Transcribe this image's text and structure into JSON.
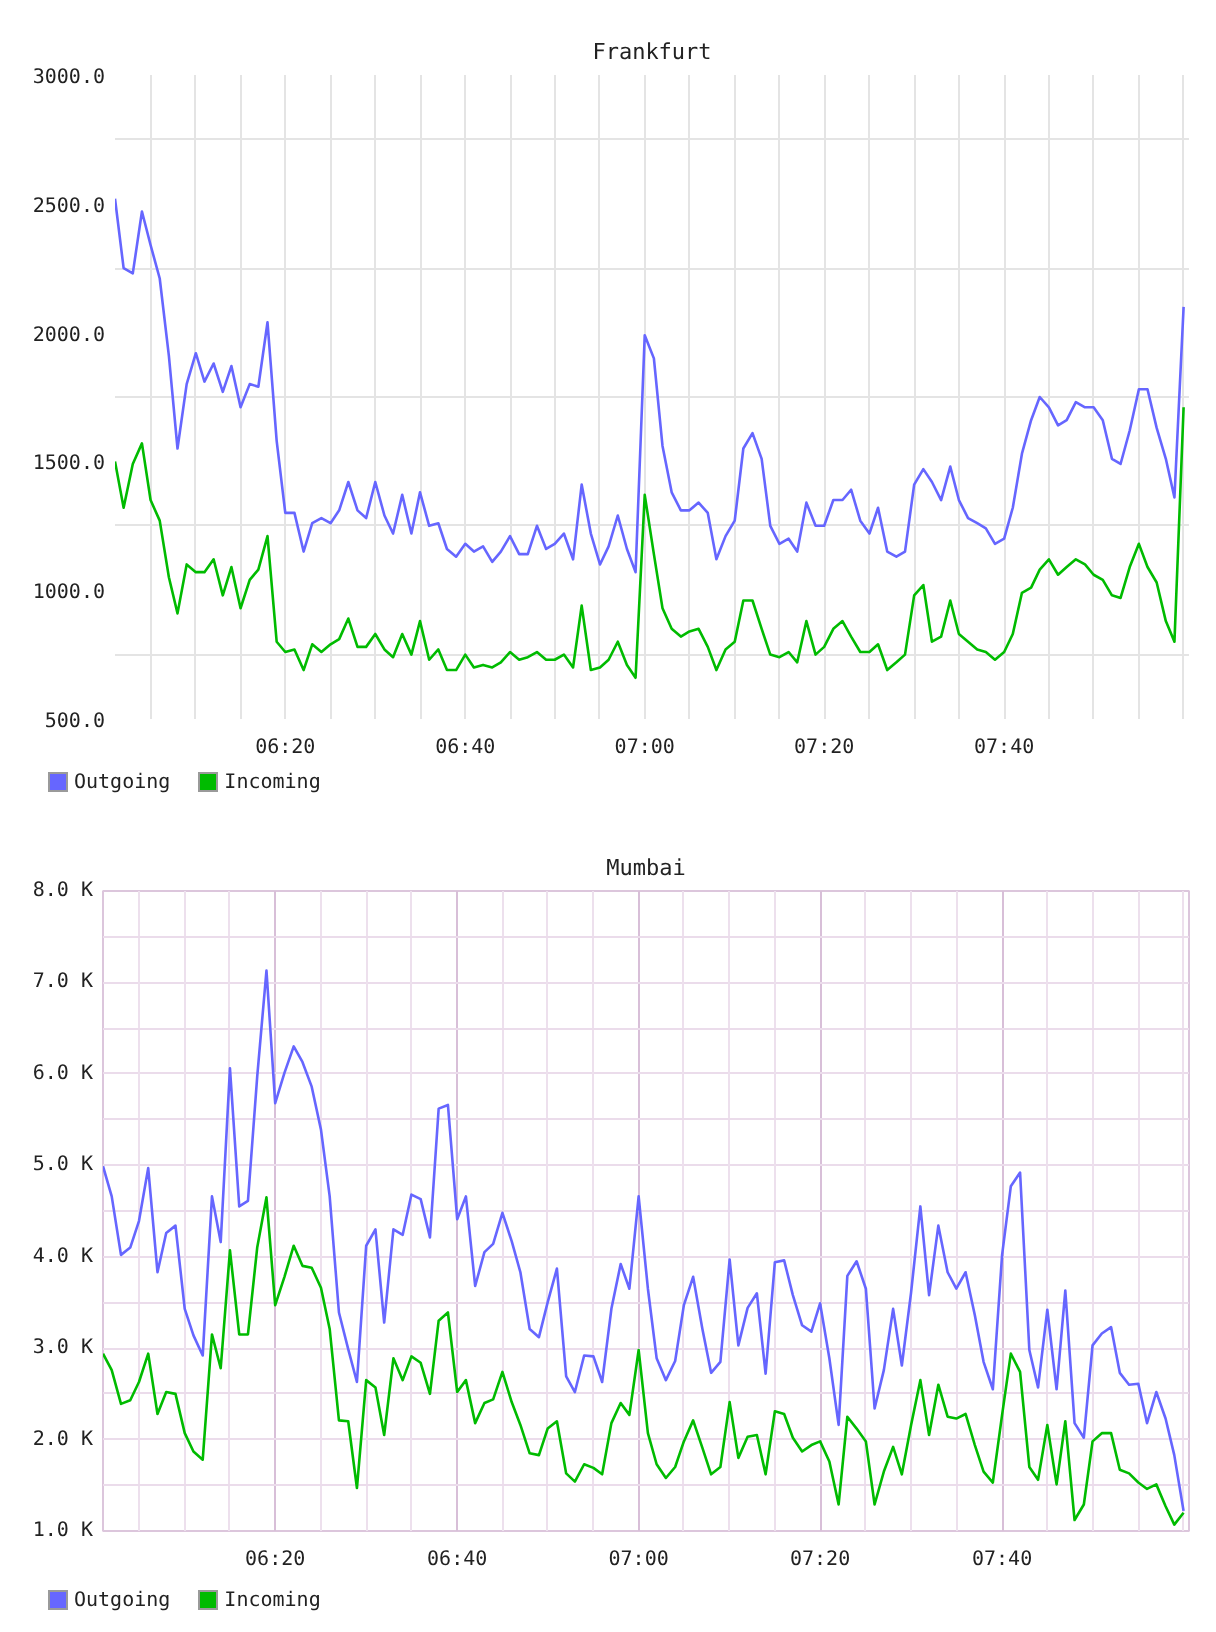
{
  "chart_data": [
    {
      "type": "line",
      "title": "Frankfurt",
      "grid": true,
      "legend": "bottom left",
      "line_style": "solid",
      "x": [
        6.017,
        6.033,
        6.05,
        6.067,
        6.083,
        6.1,
        6.117,
        6.133,
        6.15,
        6.167,
        6.183,
        6.2,
        6.217,
        6.233,
        6.25,
        6.267,
        6.283,
        6.3,
        6.317,
        6.333,
        6.35,
        6.367,
        6.383,
        6.4,
        6.417,
        6.433,
        6.45,
        6.467,
        6.483,
        6.5,
        6.517,
        6.533,
        6.55,
        6.567,
        6.583,
        6.6,
        6.617,
        6.633,
        6.65,
        6.667,
        6.683,
        6.7,
        6.717,
        6.733,
        6.75,
        6.767,
        6.783,
        6.8,
        6.817,
        6.833,
        6.85,
        6.867,
        6.883,
        6.9,
        6.917,
        6.933,
        6.95,
        6.967,
        6.983,
        7,
        7.017,
        7.033,
        7.05,
        7.067,
        7.083,
        7.1,
        7.117,
        7.133,
        7.15,
        7.167,
        7.183,
        7.2,
        7.217,
        7.233,
        7.25,
        7.267,
        7.283,
        7.3,
        7.317,
        7.333,
        7.35,
        7.367,
        7.383,
        7.4,
        7.417,
        7.433,
        7.45,
        7.467,
        7.483,
        7.5,
        7.517,
        7.533,
        7.55,
        7.567,
        7.583,
        7.6,
        7.617,
        7.633,
        7.65,
        7.667,
        7.683,
        7.7,
        7.717,
        7.733,
        7.75,
        7.767,
        7.783,
        7.8,
        7.817,
        7.833,
        7.85,
        7.867,
        7.883,
        7.9,
        7.917,
        7.933,
        7.95,
        7.967,
        7.983,
        8
      ],
      "xlim": [
        6.017,
        8.01
      ],
      "xticks": [
        {
          "value": 6.083,
          "label": null
        },
        {
          "value": 6.167,
          "label": null
        },
        {
          "value": 6.25,
          "label": null
        },
        {
          "value": 6.333,
          "label": "06:20"
        },
        {
          "value": 6.417,
          "label": null
        },
        {
          "value": 6.5,
          "label": null
        },
        {
          "value": 6.583,
          "label": null
        },
        {
          "value": 6.667,
          "label": "06:40"
        },
        {
          "value": 6.75,
          "label": null
        },
        {
          "value": 6.833,
          "label": null
        },
        {
          "value": 6.917,
          "label": null
        },
        {
          "value": 7,
          "label": "07:00"
        },
        {
          "value": 7.083,
          "label": null
        },
        {
          "value": 7.167,
          "label": null
        },
        {
          "value": 7.25,
          "label": null
        },
        {
          "value": 7.333,
          "label": "07:20"
        },
        {
          "value": 7.417,
          "label": null
        },
        {
          "value": 7.5,
          "label": null
        },
        {
          "value": 7.583,
          "label": null
        },
        {
          "value": 7.667,
          "label": "07:40"
        },
        {
          "value": 7.75,
          "label": null
        },
        {
          "value": 7.833,
          "label": null
        },
        {
          "value": 7.917,
          "label": null
        },
        {
          "value": 8,
          "label": null
        }
      ],
      "ylim": [
        500,
        3000
      ],
      "yticks": [
        {
          "value": 500,
          "label": "500.0"
        },
        {
          "value": 750,
          "label": null
        },
        {
          "value": 1000,
          "label": "1000.0"
        },
        {
          "value": 1250,
          "label": null
        },
        {
          "value": 1500,
          "label": "1500.0"
        },
        {
          "value": 1750,
          "label": null
        },
        {
          "value": 2000,
          "label": "2000.0"
        },
        {
          "value": 2250,
          "label": null
        },
        {
          "value": 2500,
          "label": "2500.0"
        },
        {
          "value": 2750,
          "label": null
        },
        {
          "value": 3000,
          "label": "3000.0"
        }
      ],
      "series": [
        {
          "name": "Outgoing",
          "color": "#6666ff",
          "values": [
            2520,
            2250,
            2230,
            2470,
            2340,
            2210,
            1910,
            1550,
            1800,
            1920,
            1810,
            1880,
            1770,
            1870,
            1710,
            1800,
            1790,
            2040,
            1580,
            1300,
            1300,
            1150,
            1260,
            1280,
            1260,
            1310,
            1420,
            1310,
            1280,
            1420,
            1290,
            1220,
            1370,
            1220,
            1380,
            1250,
            1260,
            1160,
            1130,
            1180,
            1150,
            1170,
            1110,
            1150,
            1210,
            1140,
            1140,
            1250,
            1160,
            1180,
            1220,
            1120,
            1410,
            1220,
            1100,
            1170,
            1290,
            1160,
            1070,
            1990,
            1900,
            1560,
            1380,
            1310,
            1310,
            1340,
            1300,
            1120,
            1210,
            1270,
            1550,
            1610,
            1510,
            1250,
            1180,
            1200,
            1150,
            1340,
            1250,
            1250,
            1350,
            1350,
            1390,
            1270,
            1220,
            1320,
            1150,
            1130,
            1150,
            1410,
            1470,
            1420,
            1350,
            1480,
            1350,
            1280,
            1260,
            1240,
            1180,
            1200,
            1320,
            1530,
            1660,
            1750,
            1710,
            1640,
            1660,
            1730,
            1710,
            1710,
            1660,
            1510,
            1490,
            1620,
            1780,
            1780,
            1630,
            1510,
            1360,
            2100
          ]
        },
        {
          "name": "Incoming",
          "color": "#00bb00",
          "values": [
            1500,
            1320,
            1490,
            1570,
            1350,
            1270,
            1050,
            910,
            1100,
            1070,
            1070,
            1120,
            980,
            1090,
            930,
            1040,
            1080,
            1210,
            800,
            760,
            770,
            690,
            790,
            760,
            790,
            810,
            890,
            780,
            780,
            830,
            770,
            740,
            830,
            750,
            880,
            730,
            770,
            690,
            690,
            750,
            700,
            710,
            700,
            720,
            760,
            730,
            740,
            760,
            730,
            730,
            750,
            700,
            940,
            690,
            700,
            730,
            800,
            710,
            660,
            1370,
            1140,
            930,
            850,
            820,
            840,
            850,
            780,
            690,
            770,
            800,
            960,
            960,
            850,
            750,
            740,
            760,
            720,
            880,
            750,
            780,
            850,
            880,
            820,
            760,
            760,
            790,
            690,
            720,
            750,
            980,
            1020,
            800,
            820,
            960,
            830,
            800,
            770,
            760,
            730,
            760,
            830,
            990,
            1010,
            1080,
            1120,
            1060,
            1090,
            1120,
            1100,
            1060,
            1040,
            980,
            970,
            1090,
            1180,
            1090,
            1030,
            880,
            800,
            1710
          ]
        }
      ]
    },
    {
      "type": "line",
      "title": "Mumbai",
      "grid": true,
      "legend": "bottom left",
      "line_style": "solid",
      "x": [
        6.017,
        6.033,
        6.05,
        6.067,
        6.083,
        6.1,
        6.117,
        6.133,
        6.15,
        6.167,
        6.183,
        6.2,
        6.217,
        6.233,
        6.25,
        6.267,
        6.283,
        6.3,
        6.317,
        6.333,
        6.35,
        6.367,
        6.383,
        6.4,
        6.417,
        6.433,
        6.45,
        6.467,
        6.483,
        6.5,
        6.517,
        6.533,
        6.55,
        6.567,
        6.583,
        6.6,
        6.617,
        6.633,
        6.65,
        6.667,
        6.683,
        6.7,
        6.717,
        6.733,
        6.75,
        6.767,
        6.783,
        6.8,
        6.817,
        6.833,
        6.85,
        6.867,
        6.883,
        6.9,
        6.917,
        6.933,
        6.95,
        6.967,
        6.983,
        7,
        7.017,
        7.033,
        7.05,
        7.067,
        7.083,
        7.1,
        7.117,
        7.133,
        7.15,
        7.167,
        7.183,
        7.2,
        7.217,
        7.233,
        7.25,
        7.267,
        7.283,
        7.3,
        7.317,
        7.333,
        7.35,
        7.367,
        7.383,
        7.4,
        7.417,
        7.433,
        7.45,
        7.467,
        7.483,
        7.5,
        7.517,
        7.533,
        7.55,
        7.567,
        7.583,
        7.6,
        7.617,
        7.633,
        7.65,
        7.667,
        7.683,
        7.7,
        7.717,
        7.733,
        7.75,
        7.767,
        7.783,
        7.8,
        7.817,
        7.833,
        7.85,
        7.867,
        7.883,
        7.9,
        7.917,
        7.933,
        7.95,
        7.967,
        7.983,
        8
      ],
      "xlim": [
        6.017,
        8.01
      ],
      "xticks": [
        {
          "value": 6.083,
          "label": null
        },
        {
          "value": 6.167,
          "label": null
        },
        {
          "value": 6.25,
          "label": null
        },
        {
          "value": 6.333,
          "label": "06:20"
        },
        {
          "value": 6.417,
          "label": null
        },
        {
          "value": 6.5,
          "label": null
        },
        {
          "value": 6.583,
          "label": null
        },
        {
          "value": 6.667,
          "label": "06:40"
        },
        {
          "value": 6.75,
          "label": null
        },
        {
          "value": 6.833,
          "label": null
        },
        {
          "value": 6.917,
          "label": null
        },
        {
          "value": 7,
          "label": "07:00"
        },
        {
          "value": 7.083,
          "label": null
        },
        {
          "value": 7.167,
          "label": null
        },
        {
          "value": 7.25,
          "label": null
        },
        {
          "value": 7.333,
          "label": "07:20"
        },
        {
          "value": 7.417,
          "label": null
        },
        {
          "value": 7.5,
          "label": null
        },
        {
          "value": 7.583,
          "label": null
        },
        {
          "value": 7.667,
          "label": "07:40"
        },
        {
          "value": 7.75,
          "label": null
        },
        {
          "value": 7.833,
          "label": null
        },
        {
          "value": 7.917,
          "label": null
        },
        {
          "value": 8,
          "label": null
        }
      ],
      "ylim": [
        1,
        8
      ],
      "yticks": [
        {
          "value": 1,
          "label": "1.0 K"
        },
        {
          "value": 1.5,
          "label": null
        },
        {
          "value": 2,
          "label": "2.0 K"
        },
        {
          "value": 2.5,
          "label": null
        },
        {
          "value": 3,
          "label": "3.0 K"
        },
        {
          "value": 3.5,
          "label": null
        },
        {
          "value": 4,
          "label": "4.0 K"
        },
        {
          "value": 4.5,
          "label": null
        },
        {
          "value": 5,
          "label": "5.0 K"
        },
        {
          "value": 5.5,
          "label": null
        },
        {
          "value": 6,
          "label": "6.0 K"
        },
        {
          "value": 6.5,
          "label": null
        },
        {
          "value": 7,
          "label": "7.0 K"
        },
        {
          "value": 7.5,
          "label": null
        },
        {
          "value": 8,
          "label": "8.0 K"
        }
      ],
      "series": [
        {
          "name": "Outgoing",
          "color": "#6666ff",
          "values": [
            4.99,
            4.66,
            4.02,
            4.1,
            4.39,
            4.97,
            3.83,
            4.26,
            4.34,
            3.43,
            3.14,
            2.92,
            4.66,
            4.16,
            6.06,
            4.55,
            4.61,
            5.97,
            7.13,
            5.68,
            6.01,
            6.3,
            6.13,
            5.86,
            5.39,
            4.66,
            3.39,
            2.99,
            2.63,
            4.12,
            4.3,
            3.28,
            4.3,
            4.24,
            4.68,
            4.63,
            4.21,
            5.62,
            5.66,
            4.41,
            4.66,
            3.68,
            4.05,
            4.14,
            4.48,
            4.17,
            3.83,
            3.21,
            3.12,
            3.5,
            3.87,
            2.69,
            2.52,
            2.92,
            2.91,
            2.63,
            3.43,
            3.92,
            3.65,
            4.66,
            3.65,
            2.89,
            2.65,
            2.86,
            3.47,
            3.78,
            3.21,
            2.73,
            2.85,
            3.97,
            3.03,
            3.44,
            3.6,
            2.72,
            3.94,
            3.96,
            3.58,
            3.25,
            3.18,
            3.49,
            2.89,
            2.16,
            3.79,
            3.95,
            3.65,
            2.34,
            2.76,
            3.43,
            2.81,
            3.61,
            4.55,
            3.58,
            4.34,
            3.83,
            3.65,
            3.83,
            3.36,
            2.85,
            2.55,
            4.02,
            4.77,
            4.92,
            2.98,
            2.57,
            3.42,
            2.55,
            3.63,
            2.18,
            2.02,
            3.03,
            3.16,
            3.23,
            2.73,
            2.6,
            2.61,
            2.18,
            2.52,
            2.23,
            1.83,
            1.22
          ]
        },
        {
          "name": "Incoming",
          "color": "#00bb00",
          "values": [
            2.94,
            2.76,
            2.39,
            2.43,
            2.63,
            2.94,
            2.28,
            2.52,
            2.5,
            2.07,
            1.87,
            1.78,
            3.15,
            2.78,
            4.07,
            3.15,
            3.15,
            4.1,
            4.65,
            3.47,
            3.78,
            4.12,
            3.9,
            3.88,
            3.66,
            3.21,
            2.21,
            2.2,
            1.47,
            2.65,
            2.57,
            2.05,
            2.89,
            2.65,
            2.91,
            2.84,
            2.5,
            3.3,
            3.39,
            2.52,
            2.65,
            2.18,
            2.4,
            2.44,
            2.74,
            2.41,
            2.16,
            1.85,
            1.83,
            2.12,
            2.2,
            1.63,
            1.54,
            1.73,
            1.69,
            1.62,
            2.18,
            2.4,
            2.27,
            2.98,
            2.07,
            1.73,
            1.58,
            1.7,
            1.98,
            2.21,
            1.91,
            1.62,
            1.7,
            2.41,
            1.8,
            2.03,
            2.05,
            1.62,
            2.31,
            2.28,
            2.02,
            1.87,
            1.94,
            1.98,
            1.76,
            1.29,
            2.25,
            2.12,
            1.98,
            1.29,
            1.65,
            1.92,
            1.62,
            2.16,
            2.65,
            2.05,
            2.6,
            2.25,
            2.23,
            2.28,
            1.94,
            1.65,
            1.53,
            2.27,
            2.94,
            2.74,
            1.7,
            1.56,
            2.16,
            1.51,
            2.2,
            1.12,
            1.29,
            1.98,
            2.07,
            2.07,
            1.67,
            1.63,
            1.53,
            1.46,
            1.51,
            1.27,
            1.07,
            1.2
          ]
        }
      ]
    }
  ]
}
